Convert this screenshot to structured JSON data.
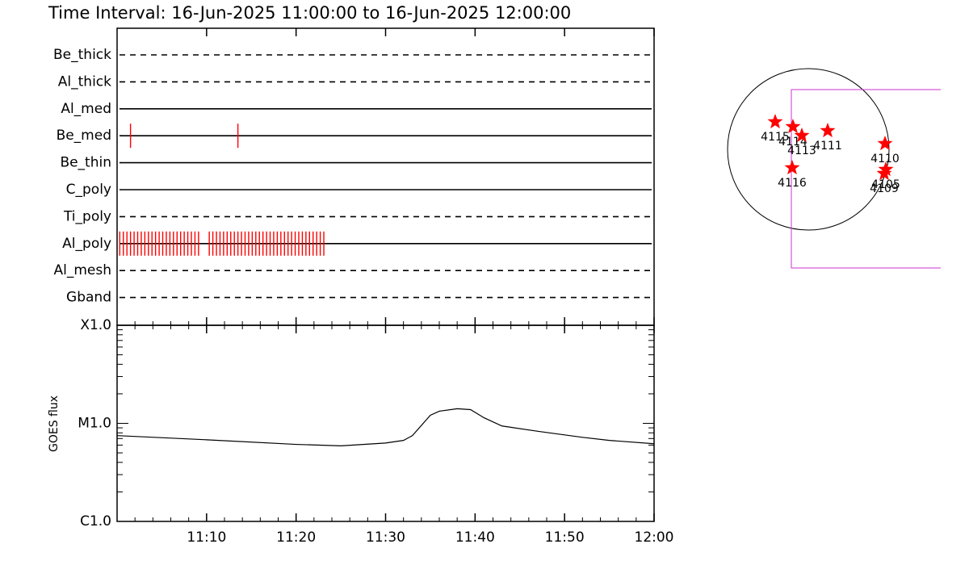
{
  "chart_data": [
    {
      "type": "timeline",
      "title": "Time Interval: 16-Jun-2025 11:00:00 to 16-Jun-2025 12:00:00",
      "categories": [
        "Be_thick",
        "Al_thick",
        "Al_med",
        "Be_med",
        "Be_thin",
        "C_poly",
        "Ti_poly",
        "Al_poly",
        "Al_mesh",
        "Gband"
      ],
      "line_styles": [
        "dashed",
        "dashed",
        "solid",
        "solid",
        "solid",
        "solid",
        "dashed",
        "solid",
        "dashed",
        "dashed"
      ],
      "events": [
        [],
        [],
        [],
        [
          1.5,
          13.5
        ],
        [],
        [],
        [],
        [
          0.3,
          0.7,
          1.1,
          1.5,
          1.9,
          2.3,
          2.7,
          3.1,
          3.5,
          3.9,
          4.3,
          4.7,
          5.1,
          5.5,
          5.9,
          6.3,
          6.7,
          7.1,
          7.5,
          7.9,
          8.3,
          8.7,
          9.1,
          10.3,
          10.7,
          11.1,
          11.5,
          11.9,
          12.3,
          12.7,
          13.1,
          13.5,
          13.9,
          14.3,
          14.7,
          15.1,
          15.5,
          15.9,
          16.3,
          16.7,
          17.1,
          17.5,
          17.9,
          18.3,
          18.7,
          19.1,
          19.5,
          19.9,
          20.3,
          20.7,
          21.1,
          21.5,
          21.9,
          22.3,
          22.7,
          23.1
        ],
        [],
        []
      ],
      "color": "#ff0000",
      "xlim": [
        0,
        60
      ]
    },
    {
      "type": "line",
      "ylabel": "GOES flux",
      "x": [
        0,
        10,
        20,
        25,
        30,
        32,
        33,
        35,
        36,
        38,
        39.5,
        41,
        43,
        47,
        52,
        55,
        60
      ],
      "values": [
        7.5e-06,
        6.8e-06,
        6.1e-06,
        5.9e-06,
        6.3e-06,
        6.7e-06,
        7.5e-06,
        1.21e-05,
        1.33e-05,
        1.41e-05,
        1.38e-05,
        1.14e-05,
        9.4e-06,
        8.3e-06,
        7.2e-06,
        6.7e-06,
        6.2e-06
      ],
      "color": "#000000",
      "log_scale": true,
      "xlim": [
        0,
        60
      ],
      "xticks": [
        {
          "value": 10,
          "label": "11:10"
        },
        {
          "value": 20,
          "label": "11:20"
        },
        {
          "value": 30,
          "label": "11:30"
        },
        {
          "value": 40,
          "label": "11:40"
        },
        {
          "value": 50,
          "label": "11:50"
        },
        {
          "value": 60,
          "label": "12:00"
        }
      ],
      "ylim": [
        1e-06,
        0.0001
      ],
      "yticks": [
        {
          "value": 1e-06,
          "label": "C1.0"
        },
        {
          "value": 1e-05,
          "label": "M1.0"
        },
        {
          "value": 0.0001,
          "label": "X1.0"
        }
      ]
    },
    {
      "type": "scatter",
      "labels": [
        "4115",
        "4114",
        "4113",
        "4111",
        "4110",
        "4105",
        "4109",
        "4116"
      ],
      "x": [
        -0.41,
        -0.19,
        -0.08,
        0.24,
        0.95,
        0.96,
        0.94,
        -0.2
      ],
      "y": [
        0.34,
        0.28,
        0.17,
        0.23,
        0.07,
        -0.25,
        -0.3,
        -0.23
      ],
      "color": "#ff0000",
      "xlim": [
        -1,
        1
      ],
      "ylim": [
        -1,
        1
      ]
    }
  ]
}
